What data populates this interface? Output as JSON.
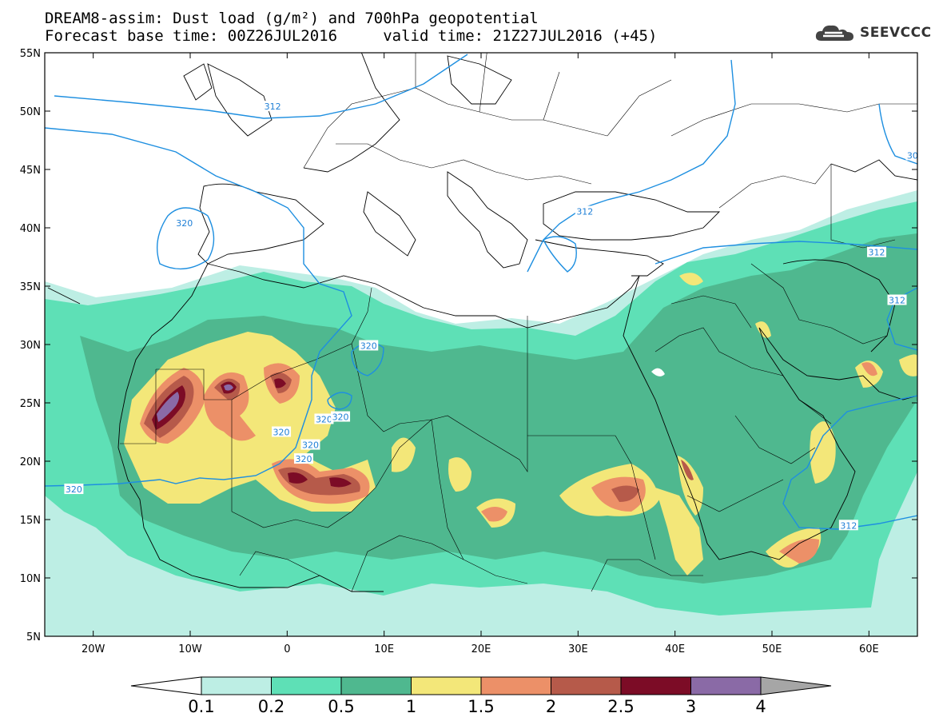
{
  "title": {
    "line1": "DREAM8-assim: Dust load (g/m²) and 700hPa geopotential",
    "line2": "Forecast base time: 00Z26JUL2016     valid time: 21Z27JUL2016 (+45)"
  },
  "logo": {
    "text": "SEEVCCC",
    "icon": "cloud-icon"
  },
  "axes": {
    "lat_labels": [
      "55N",
      "50N",
      "45N",
      "40N",
      "35N",
      "30N",
      "25N",
      "20N",
      "15N",
      "10N",
      "5N"
    ],
    "lon_labels": [
      "20W",
      "10W",
      "0",
      "10E",
      "20E",
      "30E",
      "40E",
      "50E",
      "60E"
    ]
  },
  "contour_labels": [
    {
      "text": "312",
      "lon": -1.5,
      "lat": 50.4
    },
    {
      "text": "312",
      "lon": 30.7,
      "lat": 41.4
    },
    {
      "text": "312",
      "lon": 60.8,
      "lat": 37.9
    },
    {
      "text": "312",
      "lon": 62.9,
      "lat": 33.8
    },
    {
      "text": "312",
      "lon": 57.9,
      "lat": 14.5
    },
    {
      "text": "320",
      "lon": -10.6,
      "lat": 40.4
    },
    {
      "text": "320",
      "lon": 8.4,
      "lat": 29.9
    },
    {
      "text": "320",
      "lon": 3.8,
      "lat": 23.6
    },
    {
      "text": "320",
      "lon": 5.5,
      "lat": 23.8
    },
    {
      "text": "320",
      "lon": -0.6,
      "lat": 22.5
    },
    {
      "text": "320",
      "lon": 2.4,
      "lat": 21.4
    },
    {
      "text": "320",
      "lon": 1.7,
      "lat": 20.2
    },
    {
      "text": "320",
      "lon": -22.0,
      "lat": 17.6
    },
    {
      "text": "30",
      "lon": 64.5,
      "lat": 46.2
    }
  ],
  "colorbar": {
    "labels": [
      "0.1",
      "0.2",
      "0.5",
      "1",
      "1.5",
      "2",
      "2.5",
      "3",
      "4"
    ],
    "colors": [
      "#ffffff",
      "#bdeee4",
      "#5ee0b6",
      "#4fb88f",
      "#f3e779",
      "#ec9068",
      "#b65a4a",
      "#7c0c26",
      "#8a6aa6",
      "#a6a6a6"
    ]
  },
  "map_extent": {
    "lon_min": -25,
    "lon_max": 65,
    "lat_min": 5,
    "lat_max": 55
  }
}
